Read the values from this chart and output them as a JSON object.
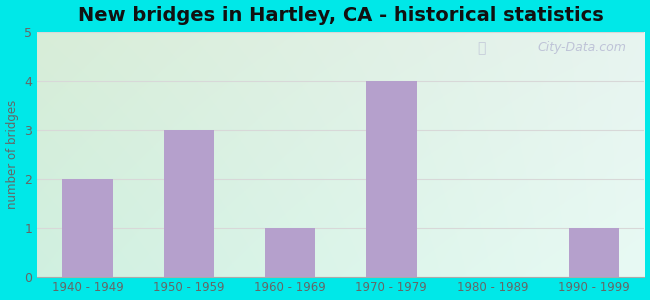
{
  "title": "New bridges in Hartley, CA - historical statistics",
  "categories": [
    "1940 - 1949",
    "1950 - 1959",
    "1960 - 1969",
    "1970 - 1979",
    "1980 - 1989",
    "1990 - 1999"
  ],
  "values": [
    2,
    3,
    1,
    4,
    0,
    1
  ],
  "bar_color": "#b5a0cc",
  "ylabel": "number of bridges",
  "ylim": [
    0,
    5
  ],
  "yticks": [
    0,
    1,
    2,
    3,
    4,
    5
  ],
  "bg_outer": "#00e8e8",
  "bg_top_left": "#d8edd8",
  "bg_top_right": "#e8f4f0",
  "bg_bottom_left": "#c8f0e0",
  "bg_bottom_right": "#e0f8f4",
  "title_fontsize": 14,
  "axis_label_color": "#666666",
  "tick_label_color": "#666666",
  "watermark": "City-Data.com",
  "grid_color": "#d8d8d8"
}
